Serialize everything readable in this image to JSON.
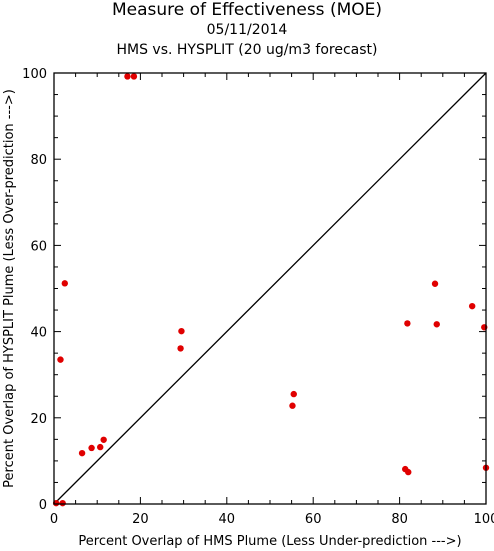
{
  "chart_data": {
    "type": "scatter",
    "title": "Measure of Effectiveness (MOE)",
    "subtitle": "05/11/2014",
    "subtitle2": "HMS vs. HYSPLIT  (20 ug/m3 forecast)",
    "xlabel": "Percent Overlap of HMS Plume (Less Under-prediction --->)",
    "ylabel": "Percent Overlap of HYSPLIT Plume (Less Over-prediction --->)",
    "xlim": [
      0,
      100
    ],
    "ylim": [
      0,
      100
    ],
    "xticks": [
      0,
      20,
      40,
      60,
      80,
      100
    ],
    "yticks": [
      0,
      20,
      40,
      60,
      80,
      100
    ],
    "grid": false,
    "reference_line": "diagonal y = x",
    "marker_color": "#e00000",
    "points": [
      {
        "x": 0.5,
        "y": 0.2
      },
      {
        "x": 2.0,
        "y": 0.2
      },
      {
        "x": 1.5,
        "y": 33.5
      },
      {
        "x": 2.5,
        "y": 51.2
      },
      {
        "x": 17.0,
        "y": 99.2
      },
      {
        "x": 18.5,
        "y": 99.2
      },
      {
        "x": 6.5,
        "y": 11.8
      },
      {
        "x": 8.7,
        "y": 13.0
      },
      {
        "x": 10.7,
        "y": 13.2
      },
      {
        "x": 11.5,
        "y": 14.9
      },
      {
        "x": 29.5,
        "y": 40.1
      },
      {
        "x": 29.3,
        "y": 36.1
      },
      {
        "x": 55.5,
        "y": 25.5
      },
      {
        "x": 55.2,
        "y": 22.8
      },
      {
        "x": 81.8,
        "y": 41.9
      },
      {
        "x": 81.3,
        "y": 8.1
      },
      {
        "x": 82.0,
        "y": 7.4
      },
      {
        "x": 88.2,
        "y": 51.1
      },
      {
        "x": 88.6,
        "y": 41.7
      },
      {
        "x": 96.8,
        "y": 45.9
      },
      {
        "x": 99.6,
        "y": 41.0
      },
      {
        "x": 100.0,
        "y": 8.4
      }
    ]
  }
}
